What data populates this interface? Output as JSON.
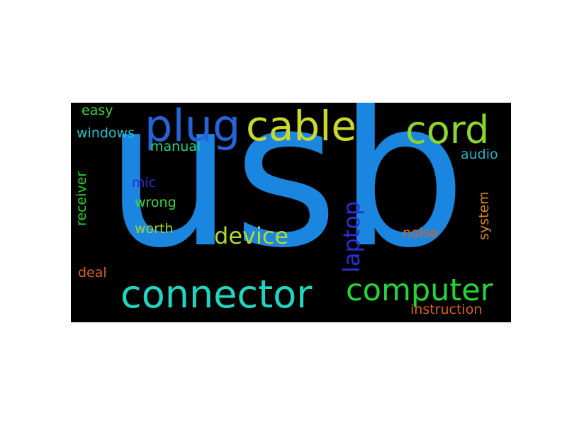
{
  "words": [
    {
      "id": "usb",
      "text": "usb",
      "color": "#1a86e0"
    },
    {
      "id": "plug",
      "text": "plug",
      "color": "#2563d9"
    },
    {
      "id": "cable",
      "text": "cable",
      "color": "#c9d92a"
    },
    {
      "id": "cord",
      "text": "cord",
      "color": "#8bd62c"
    },
    {
      "id": "connector",
      "text": "connector",
      "color": "#1fd6c0"
    },
    {
      "id": "computer",
      "text": "computer",
      "color": "#22d63a"
    },
    {
      "id": "device",
      "text": "device",
      "color": "#b3d92a"
    },
    {
      "id": "laptop",
      "text": "laptop",
      "color": "#2a2fd8"
    },
    {
      "id": "windows",
      "text": "windows",
      "color": "#1fc4d0"
    },
    {
      "id": "easy",
      "text": "easy",
      "color": "#3ad63a"
    },
    {
      "id": "manual",
      "text": "manual",
      "color": "#22d680"
    },
    {
      "id": "receiver",
      "text": "receiver",
      "color": "#2ad62a"
    },
    {
      "id": "mic",
      "text": "mic",
      "color": "#2a2fd8"
    },
    {
      "id": "wrong",
      "text": "wrong",
      "color": "#3ad63a"
    },
    {
      "id": "worth",
      "text": "worth",
      "color": "#9ad62a"
    },
    {
      "id": "deal",
      "text": "deal",
      "color": "#d9621c"
    },
    {
      "id": "audio",
      "text": "audio",
      "color": "#1fb6d0"
    },
    {
      "id": "system",
      "text": "system",
      "color": "#d9861c"
    },
    {
      "id": "noise",
      "text": "noise",
      "color": "#d9621c"
    },
    {
      "id": "instruction",
      "text": "instruction",
      "color": "#d9621c"
    }
  ]
}
